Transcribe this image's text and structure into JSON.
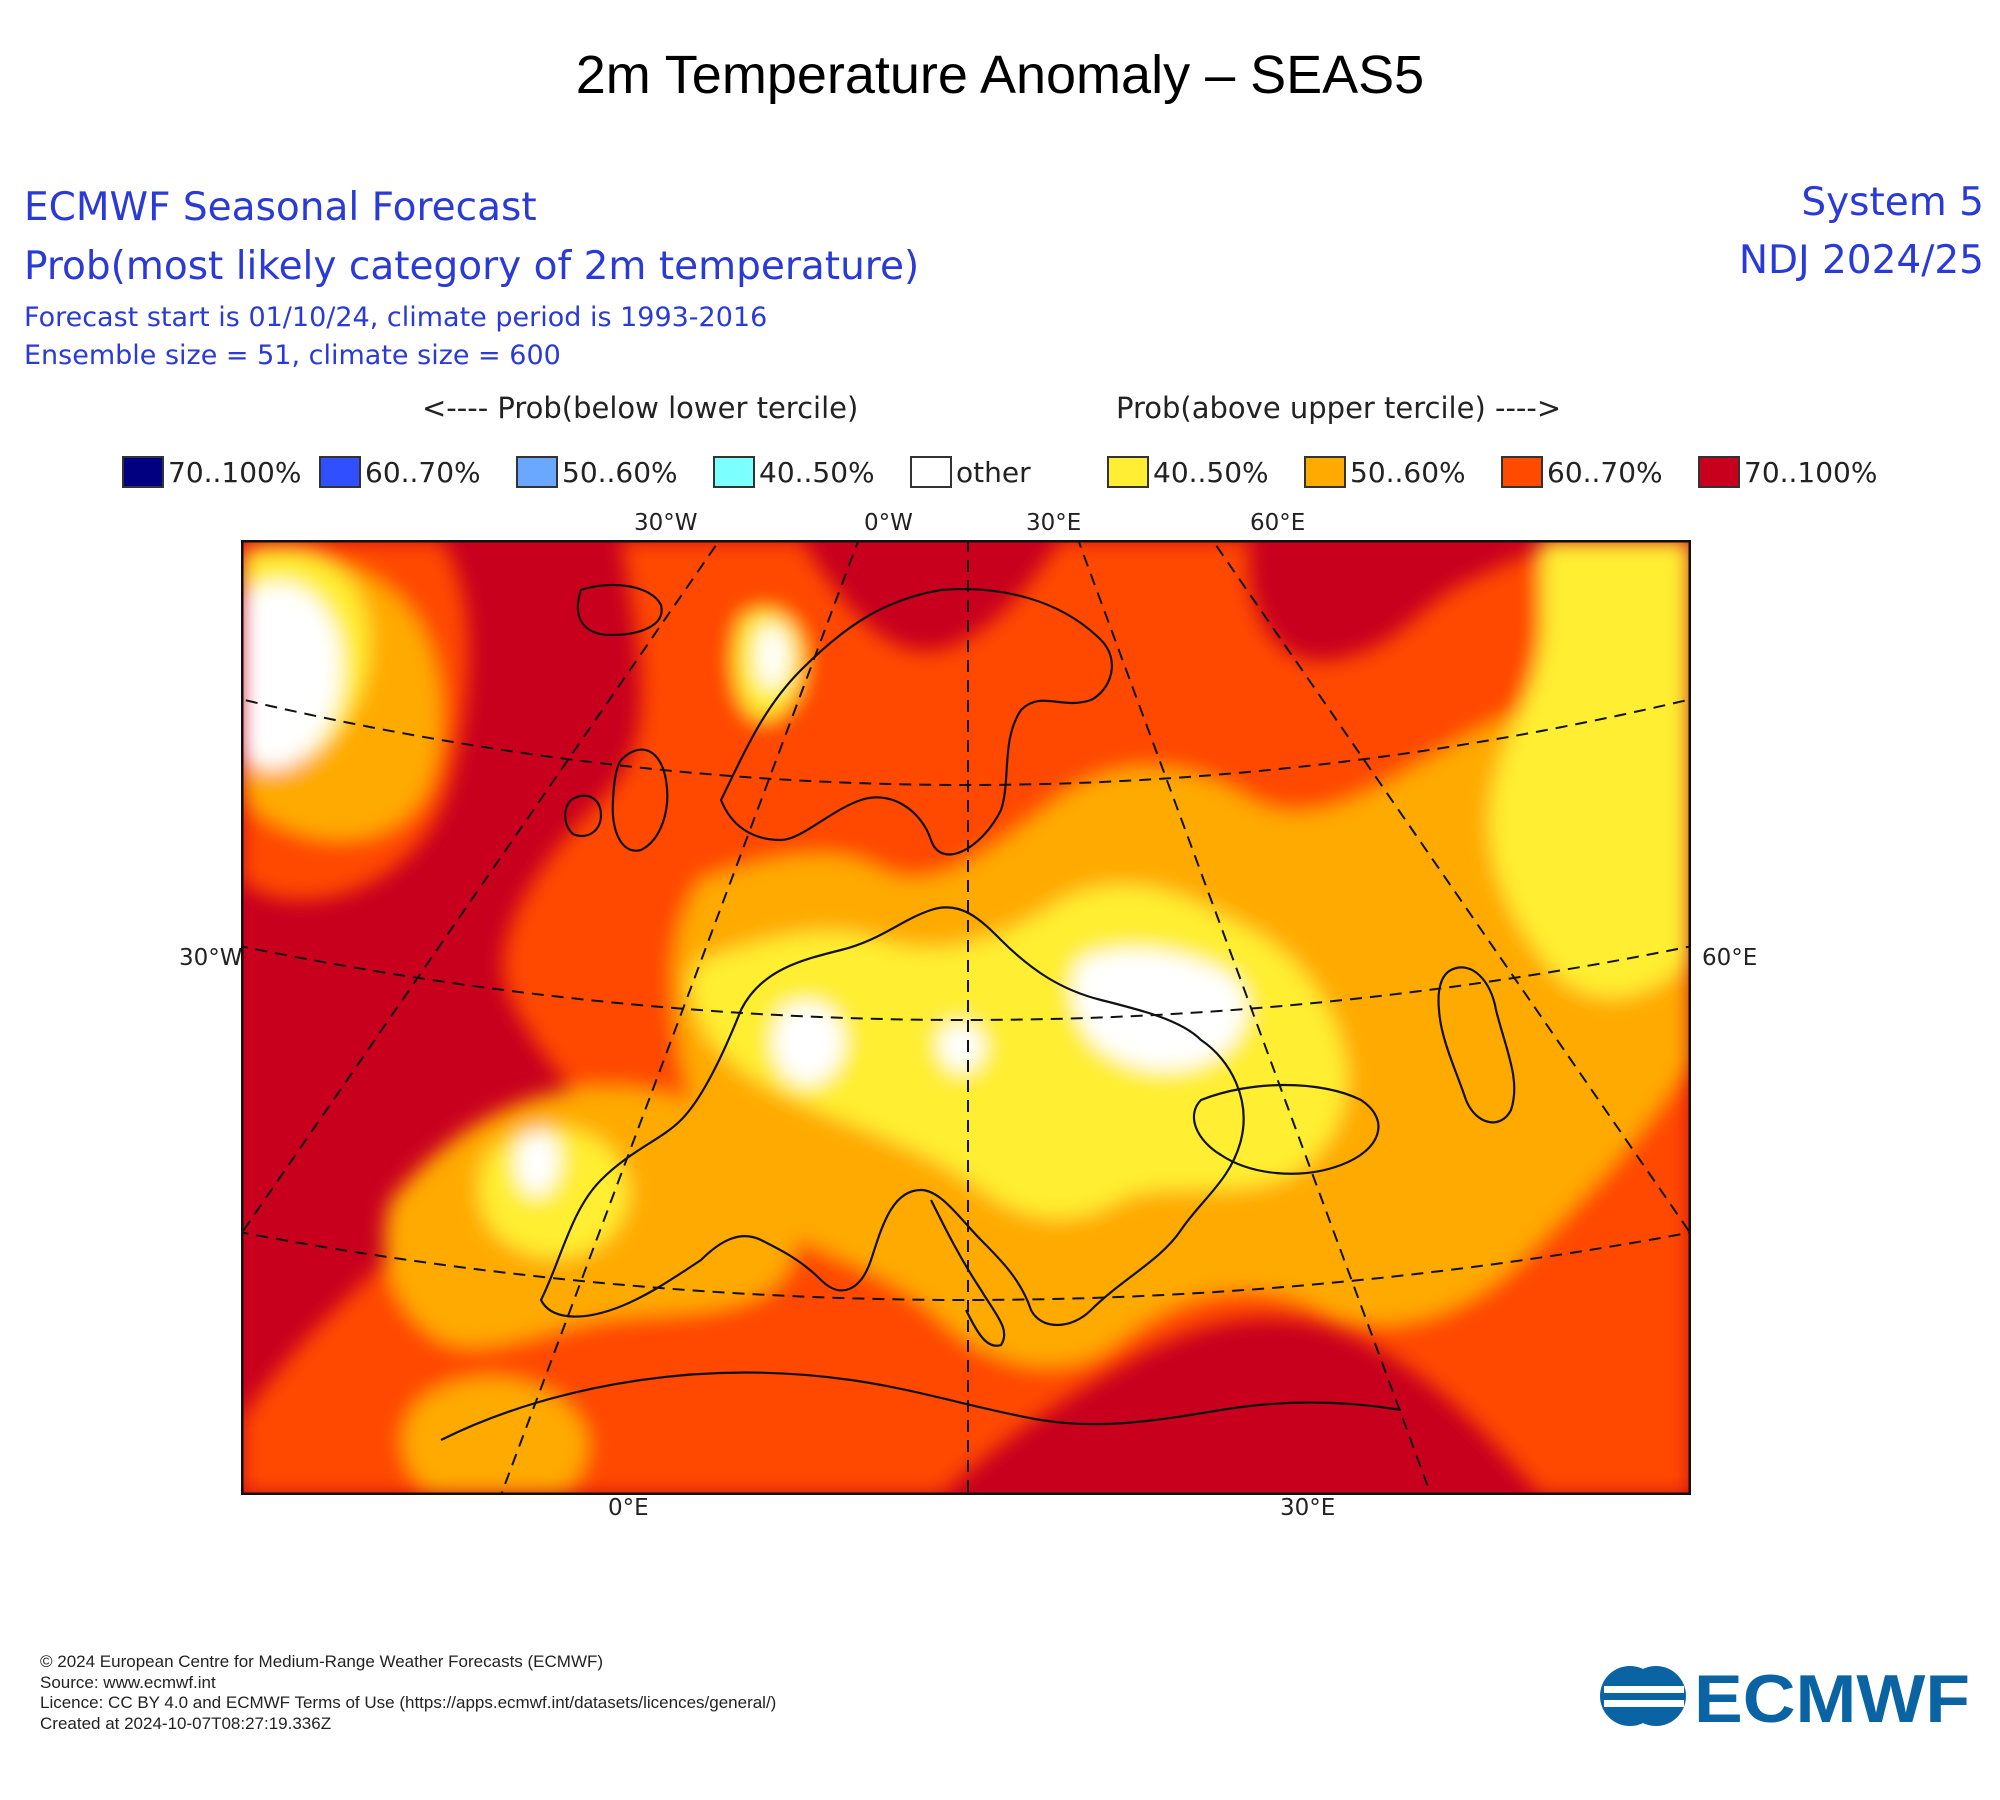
{
  "title": "2m Temperature Anomaly – SEAS5",
  "header": {
    "line1": "ECMWF Seasonal Forecast",
    "line2": "Prob(most likely category of 2m temperature)",
    "line3": "Forecast start is 01/10/24, climate period is 1993-2016",
    "line4": "Ensemble size = 51, climate size = 600",
    "system": "System 5",
    "period": "NDJ 2024/25"
  },
  "legend": {
    "below_caption": "<---- Prob(below lower tercile)",
    "above_caption": "Prob(above upper tercile) ---->",
    "items": [
      {
        "label": "70..100%",
        "color": "#000080"
      },
      {
        "label": "60..70%",
        "color": "#3050ff"
      },
      {
        "label": "50..60%",
        "color": "#6aa8ff"
      },
      {
        "label": "40..50%",
        "color": "#7cffff"
      },
      {
        "label": "other",
        "color": "#ffffff"
      },
      {
        "label": "40..50%",
        "color": "#ffee33"
      },
      {
        "label": "50..60%",
        "color": "#ffaa00"
      },
      {
        "label": "60..70%",
        "color": "#ff4a00"
      },
      {
        "label": "70..100%",
        "color": "#c8001e"
      }
    ]
  },
  "map": {
    "ticks_top": [
      "30°W",
      "0°W",
      "30°E",
      "60°E"
    ],
    "tick_left": "30°W",
    "tick_right": "60°E",
    "ticks_bottom": [
      "0°E",
      "30°E"
    ]
  },
  "footer": [
    "© 2024 European Centre for Medium-Range Weather Forecasts (ECMWF)",
    "Source: www.ecmwf.int",
    "Licence: CC BY 4.0 and ECMWF Terms of Use (https://apps.ecmwf.int/datasets/licences/general/)",
    "Created at 2024-10-07T08:27:19.336Z"
  ],
  "logo": {
    "text": "ECMWF",
    "color": "#0a63a3"
  }
}
